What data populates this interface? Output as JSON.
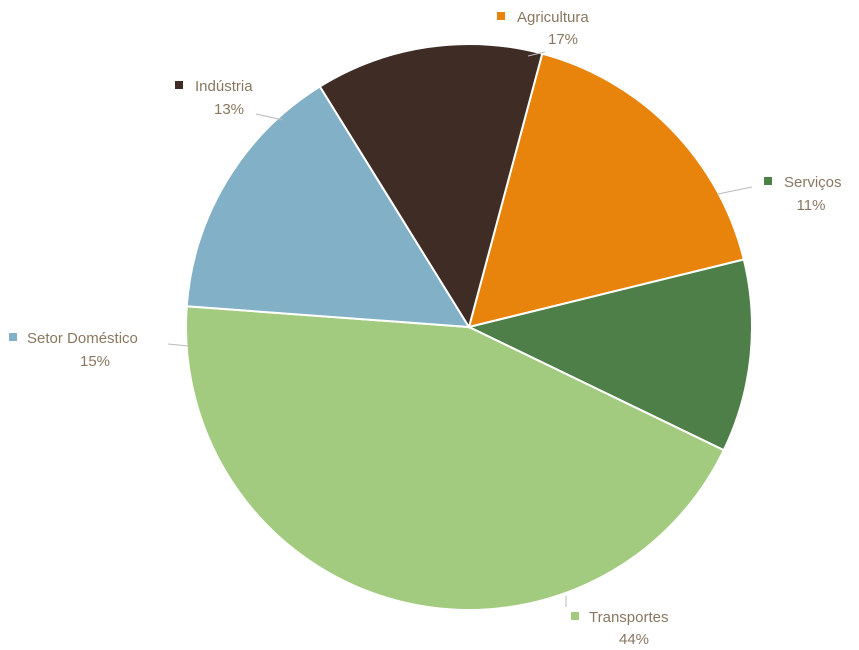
{
  "chart_data": {
    "type": "pie",
    "categories": [
      "Agricultura",
      "Serviços",
      "Transportes",
      "Setor Doméstico",
      "Indústria"
    ],
    "values": [
      17,
      11,
      44,
      15,
      13
    ],
    "labels": [
      "17%",
      "11%",
      "44%",
      "15%",
      "13%"
    ],
    "colors": [
      "#e8840b",
      "#4e7f48",
      "#a2cb80",
      "#82b0c6",
      "#3f2d25"
    ],
    "start_angle_deg": 15,
    "direction": "clockwise",
    "legend": "data-labels-outside"
  }
}
